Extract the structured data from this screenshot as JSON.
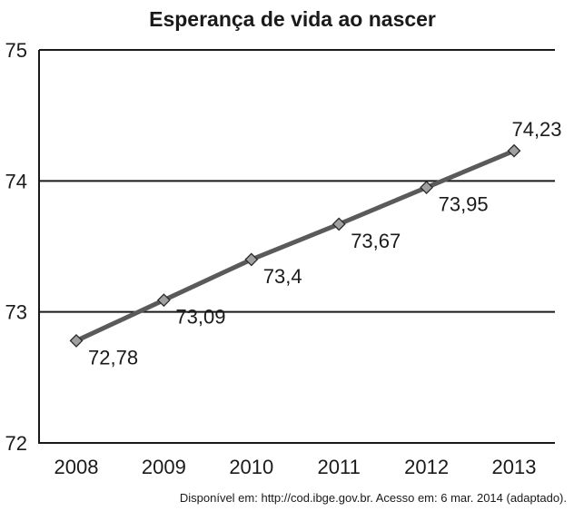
{
  "chart_data": {
    "type": "line",
    "title": "Esperança de vida ao nascer",
    "xlabel": "",
    "ylabel": "",
    "categories": [
      "2008",
      "2009",
      "2010",
      "2011",
      "2012",
      "2013"
    ],
    "series": [
      {
        "values": [
          72.78,
          73.09,
          73.4,
          73.67,
          73.95,
          74.23
        ]
      }
    ],
    "data_labels": [
      "72,78",
      "73,09",
      "73,4",
      "73,67",
      "73,95",
      "74,23"
    ],
    "ylim": [
      72,
      75
    ],
    "yticks": [
      "72",
      "73",
      "74",
      "75"
    ],
    "grid": "horizontal at 73, 74, 75",
    "legend": "none",
    "marker": "diamond",
    "line_color": "#5a5a5a",
    "marker_color": "#a0a0a0"
  },
  "source_note": "Disponível em: http://cod.ibge.gov.br. Acesso em: 6 mar. 2014 (adaptado)."
}
